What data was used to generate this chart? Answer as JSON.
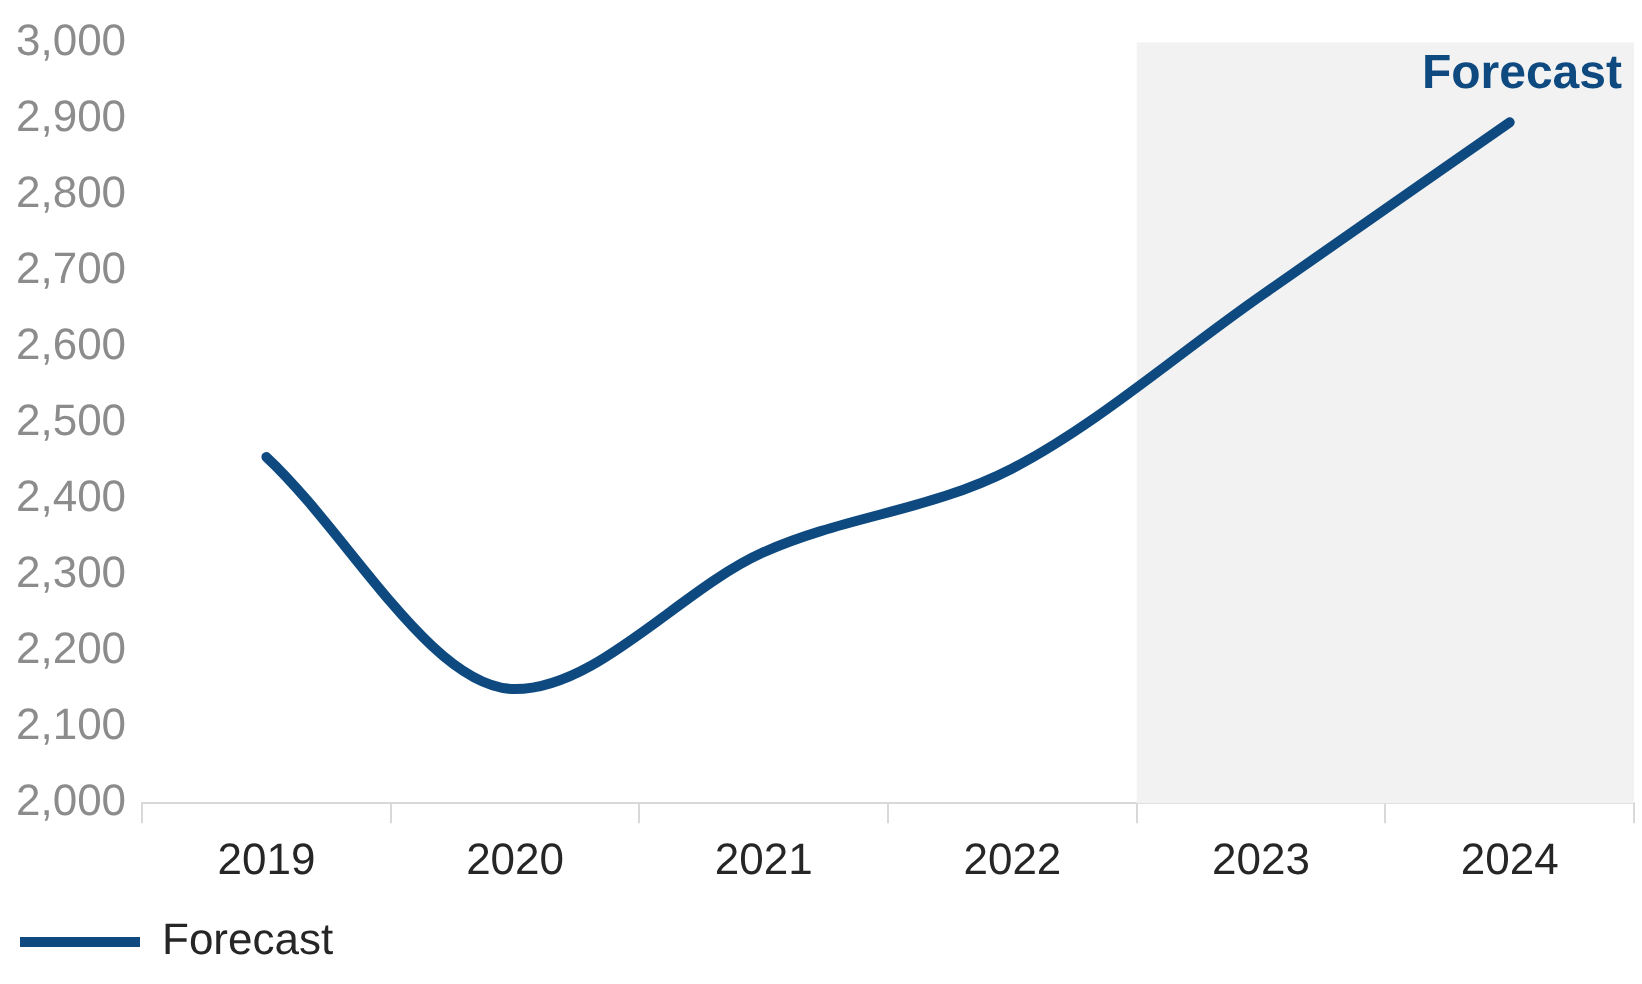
{
  "chart_data": {
    "type": "line",
    "categories": [
      "2019",
      "2020",
      "2021",
      "2022",
      "2023",
      "2024"
    ],
    "series": [
      {
        "name": "Forecast",
        "color": "#0e4a80",
        "values": [
          2455,
          2150,
          2330,
          2440,
          2667,
          2895
        ]
      }
    ],
    "ylim": [
      2000,
      3000
    ],
    "yticks": [
      {
        "value": 2000,
        "label": "2,000"
      },
      {
        "value": 2100,
        "label": "2,100"
      },
      {
        "value": 2200,
        "label": "2,200"
      },
      {
        "value": 2300,
        "label": "2,300"
      },
      {
        "value": 2400,
        "label": "2,400"
      },
      {
        "value": 2500,
        "label": "2,500"
      },
      {
        "value": 2600,
        "label": "2,600"
      },
      {
        "value": 2700,
        "label": "2,700"
      },
      {
        "value": 2800,
        "label": "2,800"
      },
      {
        "value": 2900,
        "label": "2,900"
      },
      {
        "value": 3000,
        "label": "3,000"
      }
    ],
    "bands": [
      {
        "axis": "x",
        "from": "2023",
        "to": "2024",
        "label": "Forecast",
        "color": "#f2f2f2"
      }
    ],
    "grid": false,
    "legend": "bottom left",
    "marker": "none",
    "line_style": "solid"
  }
}
